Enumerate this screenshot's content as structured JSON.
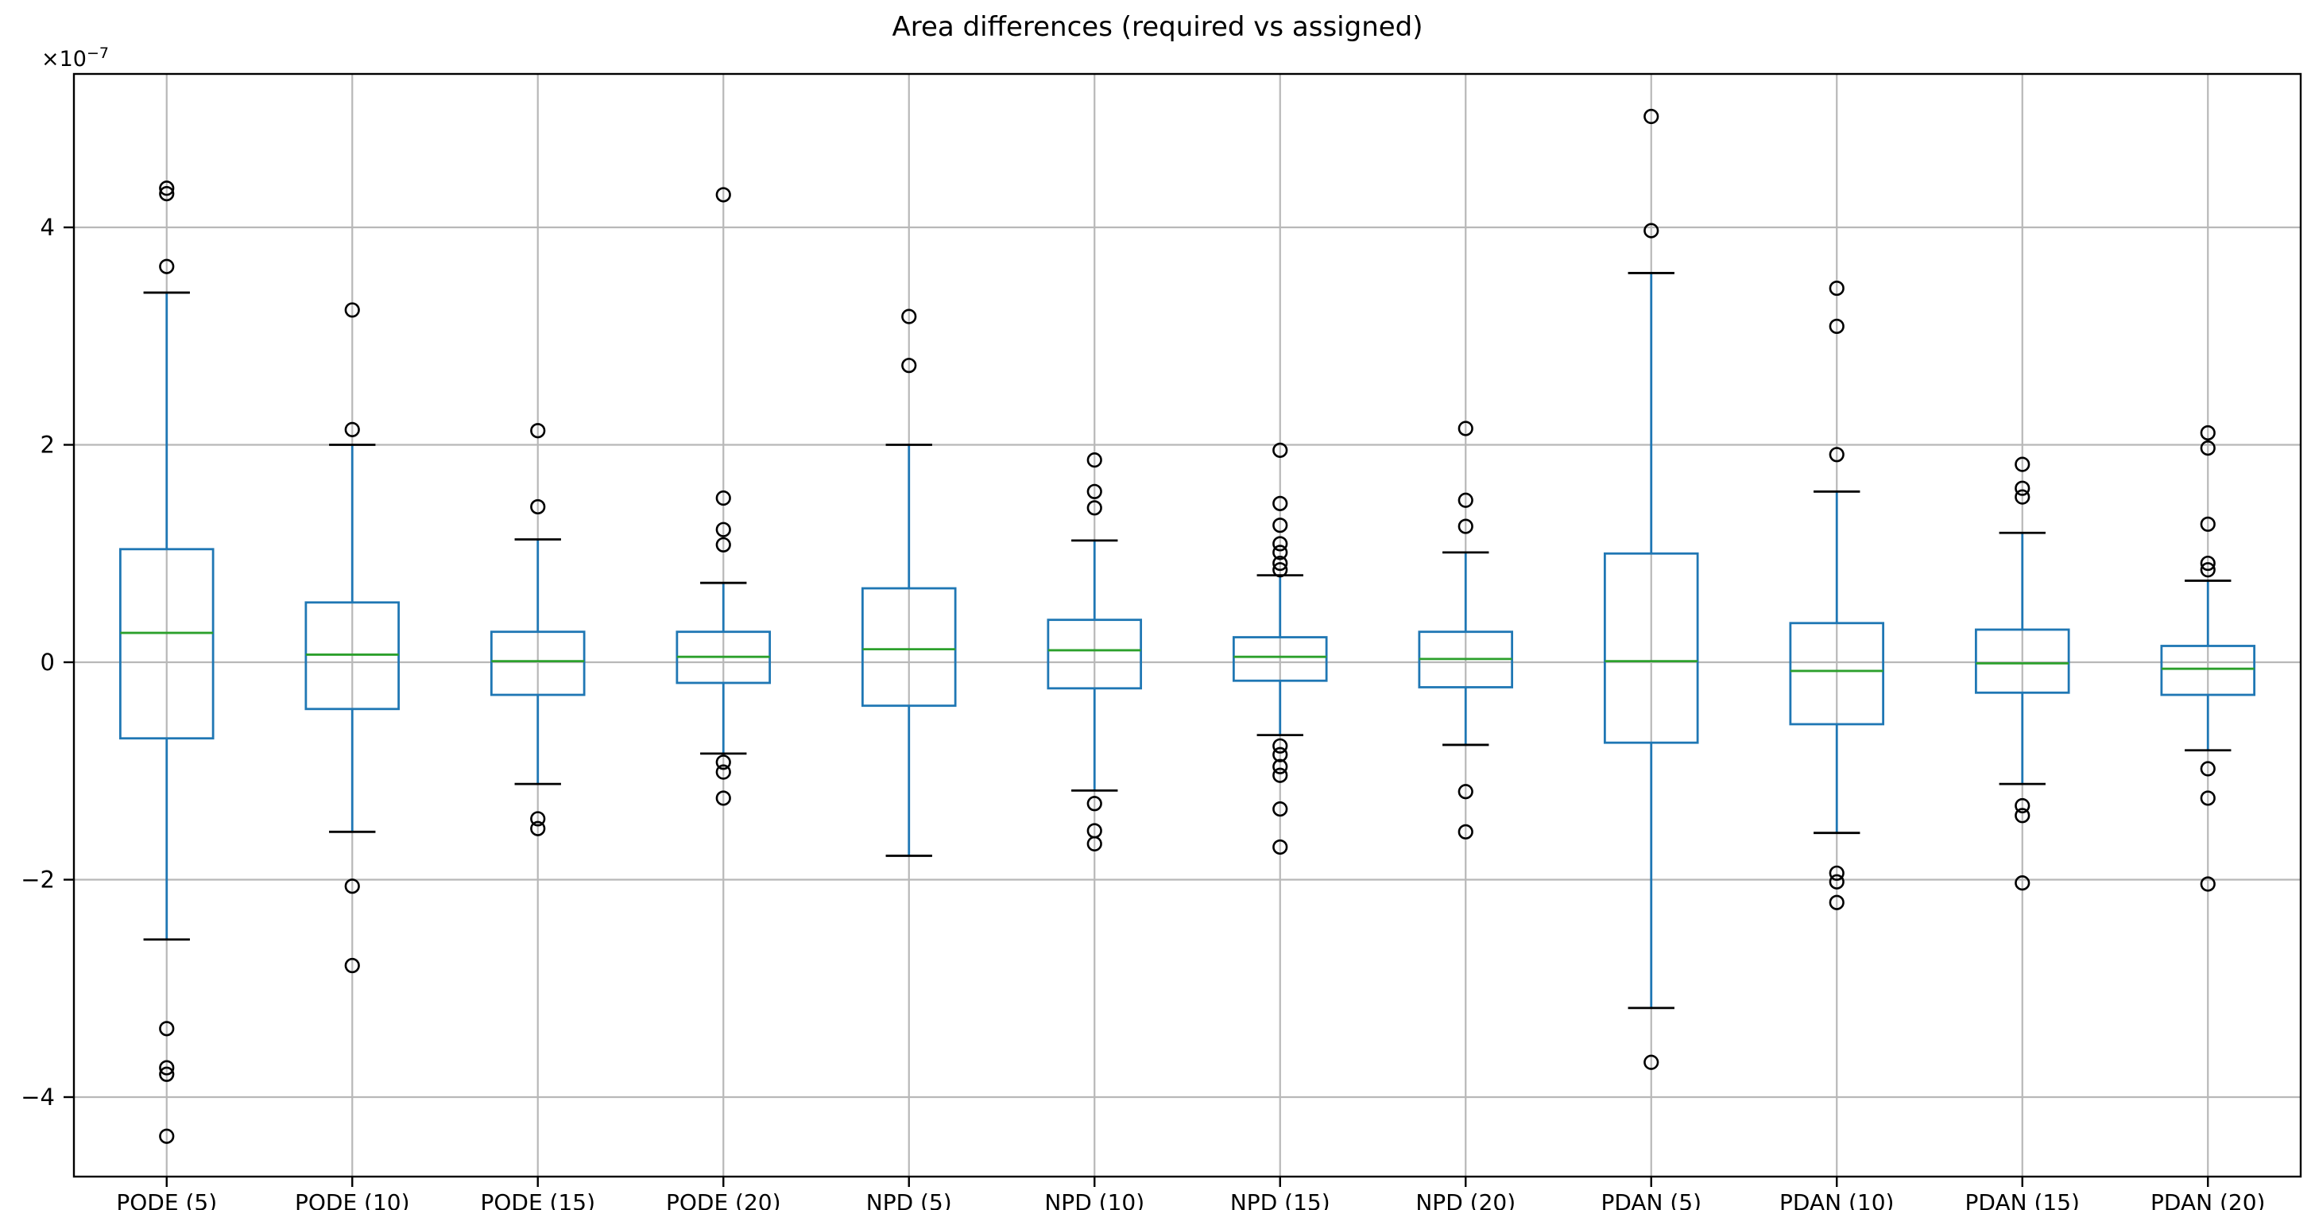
{
  "chart_data": {
    "type": "boxplot",
    "title": "Area differences (required vs assigned)",
    "y_offset_base": "×10",
    "y_offset_exponent": "−7",
    "y_unit_scale": "1e-7",
    "categories": [
      "PODE (5)",
      "PODE (10)",
      "PODE (15)",
      "PODE (20)",
      "NPD (5)",
      "NPD (10)",
      "NPD (15)",
      "NPD (20)",
      "PDAN (5)",
      "PDAN (10)",
      "PDAN (15)",
      "PDAN (20)"
    ],
    "y_ticks": [
      4,
      2,
      0,
      -2,
      -4
    ],
    "y_tick_labels": [
      "4",
      "2",
      "0",
      "−2",
      "−4"
    ],
    "ylim": [
      -4.7,
      5.4
    ],
    "grid": true,
    "legend": "none",
    "colors": {
      "box": "#1f77b4",
      "median": "#2ca02c",
      "cap": "#000000",
      "flier": "#000000",
      "grid": "#b8b8b8",
      "spine": "#000000",
      "background": "#ffffff"
    },
    "series": [
      {
        "label": "PODE (5)",
        "whislo": -2.55,
        "q1": -0.7,
        "med": 0.27,
        "q3": 1.04,
        "whishi": 3.4,
        "fliers": [
          4.36,
          4.31,
          3.64,
          -3.37,
          -3.73,
          -3.79,
          -4.36
        ]
      },
      {
        "label": "PODE (10)",
        "whislo": -1.56,
        "q1": -0.43,
        "med": 0.07,
        "q3": 0.55,
        "whishi": 2.0,
        "fliers": [
          3.24,
          2.14,
          -2.06,
          -2.79
        ]
      },
      {
        "label": "PODE (15)",
        "whislo": -1.12,
        "q1": -0.3,
        "med": 0.01,
        "q3": 0.28,
        "whishi": 1.13,
        "fliers": [
          2.13,
          1.43,
          -1.44,
          -1.53
        ]
      },
      {
        "label": "PODE (20)",
        "whislo": -0.84,
        "q1": -0.19,
        "med": 0.05,
        "q3": 0.28,
        "whishi": 0.73,
        "fliers": [
          4.3,
          1.51,
          1.22,
          1.08,
          -0.92,
          -1.01,
          -1.25
        ]
      },
      {
        "label": "NPD (5)",
        "whislo": -1.78,
        "q1": -0.4,
        "med": 0.12,
        "q3": 0.68,
        "whishi": 2.0,
        "fliers": [
          3.18,
          2.73
        ]
      },
      {
        "label": "NPD (10)",
        "whislo": -1.18,
        "q1": -0.24,
        "med": 0.11,
        "q3": 0.39,
        "whishi": 1.12,
        "fliers": [
          1.86,
          1.57,
          1.42,
          -1.3,
          -1.55,
          -1.67
        ]
      },
      {
        "label": "NPD (15)",
        "whislo": -0.67,
        "q1": -0.17,
        "med": 0.05,
        "q3": 0.23,
        "whishi": 0.8,
        "fliers": [
          1.95,
          1.46,
          1.26,
          1.09,
          1.01,
          0.91,
          0.85,
          -0.77,
          -0.85,
          -0.96,
          -1.04,
          -1.35,
          -1.7
        ]
      },
      {
        "label": "NPD (20)",
        "whislo": -0.76,
        "q1": -0.23,
        "med": 0.03,
        "q3": 0.28,
        "whishi": 1.01,
        "fliers": [
          2.15,
          1.49,
          1.25,
          -1.19,
          -1.56
        ]
      },
      {
        "label": "PDAN (5)",
        "whislo": -3.18,
        "q1": -0.74,
        "med": 0.01,
        "q3": 1.0,
        "whishi": 3.58,
        "fliers": [
          5.02,
          3.97,
          -3.68
        ]
      },
      {
        "label": "PDAN (10)",
        "whislo": -1.57,
        "q1": -0.57,
        "med": -0.08,
        "q3": 0.36,
        "whishi": 1.57,
        "fliers": [
          3.44,
          3.09,
          1.91,
          -1.94,
          -2.02,
          -2.21
        ]
      },
      {
        "label": "PDAN (15)",
        "whislo": -1.12,
        "q1": -0.28,
        "med": -0.01,
        "q3": 0.3,
        "whishi": 1.19,
        "fliers": [
          1.82,
          1.6,
          1.52,
          -1.32,
          -1.41,
          -2.03
        ]
      },
      {
        "label": "PDAN (20)",
        "whislo": -0.81,
        "q1": -0.3,
        "med": -0.06,
        "q3": 0.15,
        "whishi": 0.75,
        "fliers": [
          2.11,
          1.97,
          1.27,
          0.91,
          0.85,
          -0.98,
          -1.25,
          -2.04
        ]
      }
    ]
  }
}
